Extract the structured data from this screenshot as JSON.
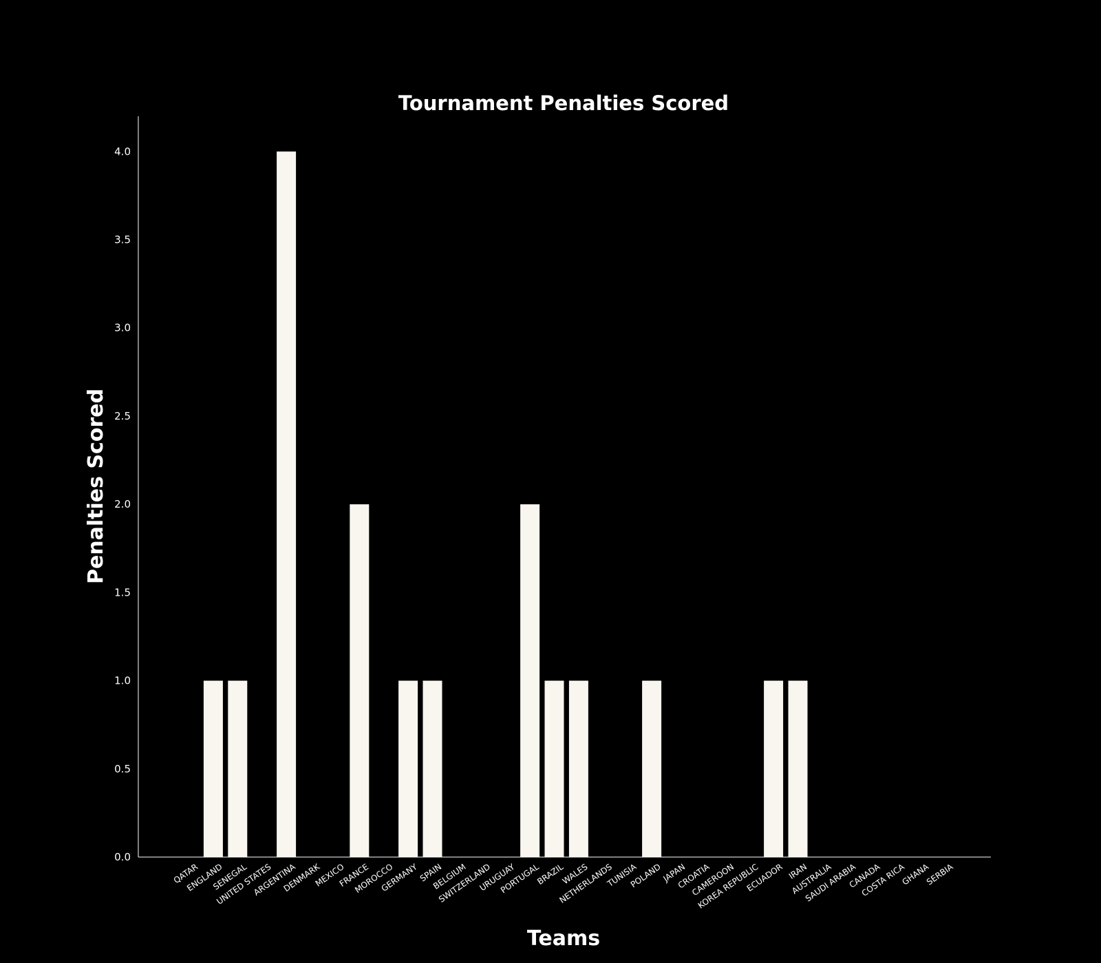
{
  "chart_data": {
    "type": "bar",
    "title": "Tournament Penalties Scored",
    "xlabel": "Teams",
    "ylabel": "Penalties Scored",
    "ylim": [
      0,
      4.2
    ],
    "yticks": [
      "0.0",
      "0.5",
      "1.0",
      "1.5",
      "2.0",
      "2.5",
      "3.0",
      "3.5",
      "4.0"
    ],
    "grid": false,
    "legend": "none",
    "colors": {
      "background": "#000000",
      "bar": "#f8f6ef",
      "axis": "#ffffff",
      "text": "#ffffff"
    },
    "categories": [
      "QATAR",
      "ENGLAND",
      "SENEGAL",
      "UNITED STATES",
      "ARGENTINA",
      "DENMARK",
      "MEXICO",
      "FRANCE",
      "MOROCCO",
      "GERMANY",
      "SPAIN",
      "BELGIUM",
      "SWITZERLAND",
      "URUGUAY",
      "PORTUGAL",
      "BRAZIL",
      "WALES",
      "NETHERLANDS",
      "TUNISIA",
      "POLAND",
      "JAPAN",
      "CROATIA",
      "CAMEROON",
      "KOREA REPUBLIC",
      "ECUADOR",
      "IRAN",
      "AUSTRALIA",
      "SAUDI ARABIA",
      "CANADA",
      "COSTA RICA",
      "GHANA",
      "SERBIA"
    ],
    "values": [
      0,
      1,
      1,
      0,
      4,
      0,
      0,
      2,
      0,
      1,
      1,
      0,
      0,
      0,
      2,
      1,
      1,
      0,
      0,
      1,
      0,
      0,
      0,
      0,
      1,
      1,
      0,
      0,
      0,
      0,
      0,
      0
    ]
  }
}
